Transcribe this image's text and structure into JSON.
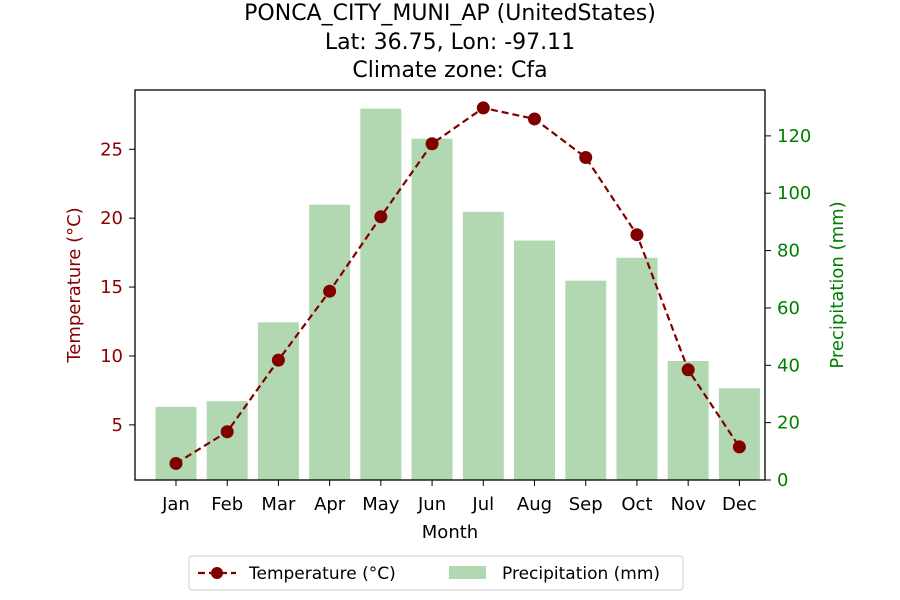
{
  "chart_data": {
    "type": "bar+line",
    "title_lines": [
      "PONCA_CITY_MUNI_AP (UnitedStates)",
      "Lat: 36.75, Lon: -97.11",
      "Climate zone: Cfa"
    ],
    "categories": [
      "Jan",
      "Feb",
      "Mar",
      "Apr",
      "May",
      "Jun",
      "Jul",
      "Aug",
      "Sep",
      "Oct",
      "Nov",
      "Dec"
    ],
    "xlabel": "Month",
    "series": [
      {
        "name": "Temperature (°C)",
        "axis": "left",
        "kind": "line",
        "style": "dashed with circle markers",
        "color": "#800000",
        "values": [
          2.2,
          4.5,
          9.7,
          14.7,
          20.1,
          25.4,
          28.0,
          27.2,
          24.4,
          18.8,
          9.0,
          3.4
        ]
      },
      {
        "name": "Precipitation (mm)",
        "axis": "right",
        "kind": "bar",
        "color": "#b2d8b2",
        "values": [
          25.5,
          27.5,
          55.0,
          96.0,
          129.5,
          119.0,
          93.5,
          83.5,
          69.5,
          77.5,
          41.5,
          32.0
        ]
      }
    ],
    "y_left": {
      "label": "Temperature (°C)",
      "range": [
        1.0,
        29.3
      ],
      "ticks": [
        5,
        10,
        15,
        20,
        25
      ],
      "color": "#8b0000"
    },
    "y_right": {
      "label": "Precipitation (mm)",
      "range": [
        0,
        136
      ],
      "ticks": [
        0,
        20,
        40,
        60,
        80,
        100,
        120
      ],
      "color": "#008000"
    },
    "grid": false,
    "legend": {
      "placement": "bottom-center",
      "entries": [
        "Temperature (°C)",
        "Precipitation (mm)"
      ]
    }
  }
}
